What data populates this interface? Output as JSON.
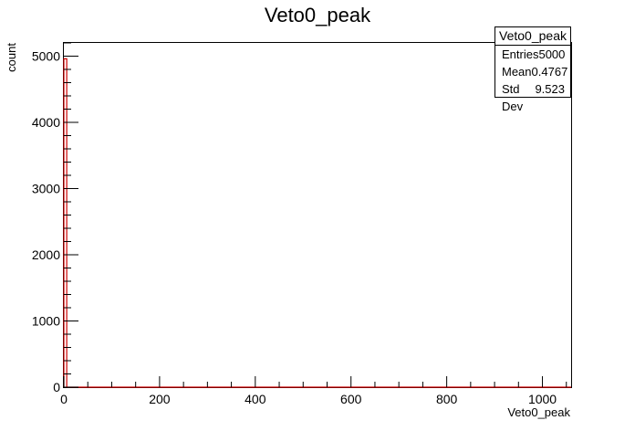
{
  "chart_data": {
    "type": "bar",
    "title": "Veto0_peak",
    "xlabel": "Veto0_peak",
    "ylabel": "count",
    "xlim": [
      0,
      1060
    ],
    "ylim": [
      0,
      5200
    ],
    "x_ticks": [
      0,
      200,
      400,
      600,
      800,
      1000
    ],
    "y_ticks": [
      0,
      1000,
      2000,
      3000,
      4000,
      5000
    ],
    "bins": [
      {
        "x0": 0,
        "x1": 6,
        "value": 4960
      },
      {
        "x0": 6,
        "x1": 1060,
        "value": 0
      }
    ],
    "series_color": "#cc0000",
    "grid": false,
    "stats": {
      "title": "Veto0_peak",
      "rows": [
        {
          "label": "Entries",
          "value": "5000"
        },
        {
          "label": "Mean",
          "value": "0.4767"
        },
        {
          "label": "Std Dev",
          "value": "9.523"
        }
      ]
    }
  }
}
